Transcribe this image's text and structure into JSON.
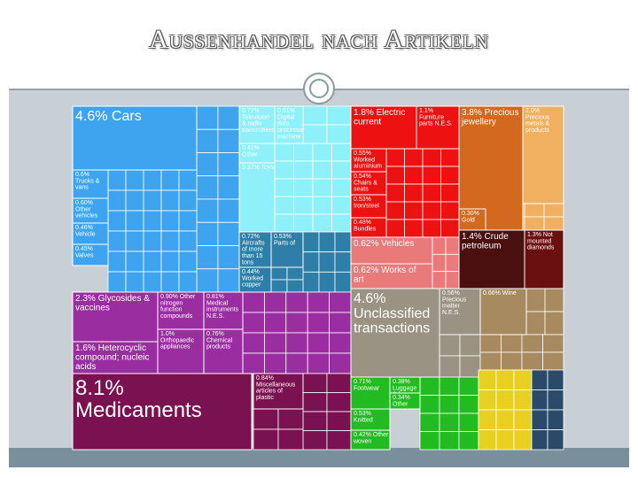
{
  "page": {
    "title": "Aussenhandel nach Artikeln"
  },
  "chart_data": {
    "type": "treemap",
    "unit": "%",
    "cells": [
      {
        "label": "4.6% Cars",
        "value": 4.6,
        "color": "#3fa4f0",
        "size": "big"
      },
      {
        "label": "0.6% Trucks & vans",
        "value": 0.6,
        "color": "#3fa4f0"
      },
      {
        "label": "0.60% Other vehicles",
        "value": 0.6,
        "color": "#3fa4f0"
      },
      {
        "label": "0.46% Vehicle parts",
        "value": 0.46,
        "color": "#3fa4f0"
      },
      {
        "label": "0.45% Valves",
        "value": 0.45,
        "color": "#3fa4f0"
      },
      {
        "label": "0.72% Television & radio transmitters",
        "value": 0.72,
        "color": "#8ef0f8"
      },
      {
        "label": "0.61% Digital data processor machine",
        "value": 0.61,
        "color": "#8ef0f8"
      },
      {
        "label": "0.41% Other",
        "value": 0.41,
        "color": "#8ef0f8"
      },
      {
        "label": "0.37% Toys",
        "value": 0.37,
        "color": "#8ef0f8"
      },
      {
        "label": "0.72% Aircrafts of more than 15 tons",
        "value": 0.72,
        "color": "#2e7fa8"
      },
      {
        "label": "0.53% Parts of",
        "value": 0.53,
        "color": "#2e7fa8"
      },
      {
        "label": "0.44% Worked copper",
        "value": 0.44,
        "color": "#2e7fa8"
      },
      {
        "label": "1.8% Electric current",
        "value": 1.8,
        "color": "#ee1111"
      },
      {
        "label": "1.1% Furniture parts N.E.S.",
        "value": 1.1,
        "color": "#ee1111"
      },
      {
        "label": "0.55% Worked aluminium",
        "value": 0.55,
        "color": "#ee1111"
      },
      {
        "label": "0.54% Chairs & seats",
        "value": 0.54,
        "color": "#ee1111"
      },
      {
        "label": "0.53% Iron/steel",
        "value": 0.53,
        "color": "#ee1111"
      },
      {
        "label": "0.48% Bundles",
        "value": 0.48,
        "color": "#ee1111"
      },
      {
        "label": "0.62% Vehicles",
        "value": 0.62,
        "color": "#ea7a7a"
      },
      {
        "label": "0.62% Works of art",
        "value": 0.62,
        "color": "#ea7a7a"
      },
      {
        "label": "3.8% Precious jewellery",
        "value": 3.8,
        "color": "#d2691e"
      },
      {
        "label": "2.0% Precious metals & products",
        "value": 2.0,
        "color": "#f0b060"
      },
      {
        "label": "0.30% Gold",
        "value": 0.3,
        "color": "#d2691e"
      },
      {
        "label": "1.4% Crude petroleum",
        "value": 1.4,
        "color": "#4a1010"
      },
      {
        "label": "1.3% Not mounted diamonds",
        "value": 1.3,
        "color": "#6a1010"
      },
      {
        "label": "2.3% Glycosides & vaccines",
        "value": 2.3,
        "color": "#9a2ea0"
      },
      {
        "label": "0.90% Other nitrogen function compounds",
        "value": 0.9,
        "color": "#9a2ea0"
      },
      {
        "label": "0.81% Medical instruments N.E.S.",
        "value": 0.81,
        "color": "#9a2ea0"
      },
      {
        "label": "1.6% Heterocyclic compound; nucleic acids",
        "value": 1.6,
        "color": "#9a2ea0"
      },
      {
        "label": "1.0% Orthopaedic appliances",
        "value": 1.0,
        "color": "#9a2ea0"
      },
      {
        "label": "0.76% Chemical products",
        "value": 0.76,
        "color": "#9a2ea0"
      },
      {
        "label": "8.1% Medicaments",
        "value": 8.1,
        "color": "#7a1150",
        "size": "big"
      },
      {
        "label": "0.84% Miscellaneous articles of plastic",
        "value": 0.84,
        "color": "#7a1150"
      },
      {
        "label": "4.6% Unclassified transactions",
        "value": 4.6,
        "color": "#9a9283",
        "size": "big"
      },
      {
        "label": "0.56% Precious matter N.E.S.",
        "value": 0.56,
        "color": "#9a9283"
      },
      {
        "label": "0.66% Wine",
        "value": 0.66,
        "color": "#a88a60"
      },
      {
        "label": "0.71% Footwear",
        "value": 0.71,
        "color": "#22bb22"
      },
      {
        "label": "0.38% Luggage & bags",
        "value": 0.38,
        "color": "#22bb22"
      },
      {
        "label": "0.34% Other",
        "value": 0.34,
        "color": "#22bb22"
      },
      {
        "label": "0.53% Knitted",
        "value": 0.53,
        "color": "#22bb22"
      },
      {
        "label": "0.42% Other woven",
        "value": 0.42,
        "color": "#22bb22"
      }
    ]
  },
  "labels": [
    "4.6% Cars",
    "0.6% Trucks & vans",
    "0.60% Other vehicles",
    "0.46% Vehicle parts",
    "0.45% Valves",
    "0.72% Television & radio transmitters",
    "0.61% Digital data processor machine",
    "0.41% Other",
    "0.37% Toys",
    "0.72% Aircrafts of more than 15 tons",
    "0.53% Parts of",
    "0.44% Worked copper",
    "1.8% Electric current",
    "1.1% Furniture parts N.E.S.",
    "0.55% Worked aluminium",
    "0.54% Chairs & seats",
    "0.53% Iron/steel",
    "0.48% Bundles",
    "0.62% Vehicles",
    "0.62% Works of art",
    "3.8% Precious jewellery",
    "2.0% Precious metals & products",
    "0.30% Gold",
    "1.4% Crude petroleum",
    "1.3% Not mounted diamonds",
    "2.3% Glycosides & vaccines",
    "0.90% Other nitrogen function compounds",
    "0.81% Medical instruments N.E.S.",
    "1.6% Heterocyclic compound; nucleic acids",
    "1.0% Orthopaedic appliances",
    "0.76% Chemical products",
    "8.1% Medicaments",
    "0.84% Miscellaneous articles of plastic",
    "4.6% Unclassified transactions",
    "0.56% Precious matter N.E.S.",
    "0.66% Wine",
    "0.71% Footwear",
    "0.38% Luggage & bags",
    "0.34% Other",
    "0.53% Knitted",
    "0.42% Other woven"
  ]
}
